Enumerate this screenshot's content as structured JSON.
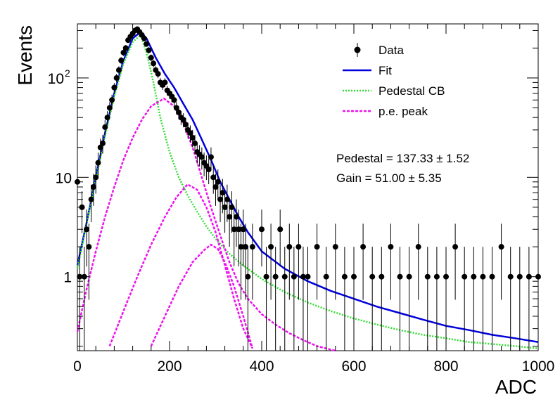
{
  "chart_data": {
    "type": "scatter",
    "title": "",
    "xlabel": "ADC",
    "ylabel": "Events",
    "xlim": [
      0,
      1000
    ],
    "ylim": [
      0.18,
      350
    ],
    "yscale": "log",
    "grid": false,
    "legend_position": "top-right",
    "x_ticks": [
      {
        "value": 0,
        "label": "0"
      },
      {
        "value": 200,
        "label": "200"
      },
      {
        "value": 400,
        "label": "400"
      },
      {
        "value": 600,
        "label": "600"
      },
      {
        "value": 800,
        "label": "800"
      },
      {
        "value": 1000,
        "label": "1000"
      }
    ],
    "y_ticks": [
      {
        "value": 1,
        "label": "1"
      },
      {
        "value": 10,
        "label": "10"
      },
      {
        "value": 100,
        "label": "10",
        "sup": "2"
      }
    ],
    "legend": [
      {
        "label": "Data",
        "style": "marker",
        "color": "#000000"
      },
      {
        "label": "Fit",
        "style": "solid",
        "color": "#0000dd"
      },
      {
        "label": "Pedestal CB",
        "style": "dotted",
        "color": "#33dd33"
      },
      {
        "label": "p.e. peak",
        "style": "dashed",
        "color": "#ee11ee"
      }
    ],
    "annotations": [
      {
        "text": "Pedestal = 137.33 ± 1.52"
      },
      {
        "text": "Gain = 51.00 ± 5.35"
      }
    ],
    "series": [
      {
        "name": "Data",
        "style": "points",
        "color": "#000000",
        "x": [
          0,
          5,
          10,
          15,
          20,
          25,
          30,
          35,
          40,
          45,
          50,
          55,
          60,
          65,
          70,
          75,
          80,
          85,
          90,
          95,
          100,
          105,
          110,
          115,
          120,
          125,
          130,
          135,
          140,
          145,
          150,
          155,
          160,
          165,
          170,
          175,
          180,
          185,
          190,
          195,
          200,
          205,
          210,
          215,
          220,
          225,
          230,
          235,
          240,
          245,
          250,
          255,
          260,
          265,
          270,
          275,
          280,
          285,
          290,
          295,
          300,
          305,
          310,
          315,
          320,
          325,
          330,
          335,
          340,
          345,
          350,
          355,
          360,
          365,
          370,
          380,
          400,
          410,
          420,
          430,
          440,
          450,
          460,
          470,
          480,
          490,
          500,
          520,
          540,
          560,
          580,
          600,
          620,
          640,
          660,
          680,
          700,
          720,
          740,
          760,
          780,
          800,
          820,
          840,
          860,
          880,
          900,
          920,
          940,
          960,
          980,
          1000
        ],
        "y": [
          9,
          1,
          5,
          1,
          3,
          2,
          6,
          8,
          10,
          14,
          20,
          22,
          32,
          40,
          50,
          60,
          80,
          100,
          120,
          150,
          180,
          200,
          240,
          260,
          280,
          300,
          310,
          290,
          270,
          250,
          220,
          190,
          160,
          140,
          120,
          110,
          90,
          85,
          90,
          75,
          70,
          65,
          60,
          50,
          45,
          40,
          38,
          34,
          30,
          28,
          25,
          22,
          18,
          17,
          16,
          14,
          13,
          12,
          16,
          10,
          8,
          9,
          6,
          7,
          5,
          6,
          4,
          5,
          3,
          4,
          3,
          2,
          3,
          2,
          1,
          2,
          3,
          1,
          2,
          1,
          3,
          1,
          2,
          1,
          2,
          1,
          1,
          2,
          1,
          2,
          1,
          1,
          2,
          1,
          1,
          2,
          1,
          1,
          2,
          1,
          1,
          1,
          2,
          1,
          1,
          1,
          1,
          2,
          1,
          1,
          1,
          1
        ]
      },
      {
        "name": "Fit",
        "style": "line",
        "color": "#0000dd",
        "x": [
          0,
          20,
          40,
          60,
          80,
          100,
          120,
          137,
          150,
          170,
          190,
          210,
          230,
          250,
          270,
          290,
          310,
          330,
          350,
          370,
          400,
          450,
          500,
          550,
          600,
          650,
          700,
          750,
          800,
          850,
          900,
          950,
          1000
        ],
        "y": [
          1.3,
          3.5,
          10,
          28,
          70,
          150,
          250,
          290,
          250,
          160,
          110,
          80,
          55,
          38,
          24,
          15,
          9,
          6,
          4,
          2.8,
          1.8,
          1.2,
          0.9,
          0.72,
          0.6,
          0.5,
          0.43,
          0.37,
          0.32,
          0.29,
          0.26,
          0.24,
          0.22
        ]
      },
      {
        "name": "Pedestal CB",
        "style": "line",
        "color": "#33dd33",
        "x": [
          0,
          20,
          40,
          60,
          80,
          100,
          120,
          137,
          150,
          165,
          180,
          200,
          220,
          240,
          260,
          280,
          300,
          330,
          360,
          400,
          450,
          500,
          550,
          600,
          650,
          700,
          750,
          800,
          850,
          900,
          950,
          1000
        ],
        "y": [
          1.2,
          3.4,
          9.5,
          26,
          65,
          140,
          230,
          270,
          180,
          90,
          40,
          18,
          10,
          6.5,
          4.5,
          3.2,
          2.4,
          1.7,
          1.3,
          0.95,
          0.7,
          0.55,
          0.45,
          0.38,
          0.33,
          0.29,
          0.26,
          0.24,
          0.22,
          0.21,
          0.2,
          0.19
        ]
      },
      {
        "name": "p.e. peak",
        "style": "line",
        "color": "#ee11ee",
        "x": [
          0,
          20,
          40,
          60,
          80,
          100,
          120,
          140,
          160,
          188,
          210,
          230,
          250,
          270,
          290,
          310,
          330,
          350,
          370,
          400,
          430,
          460,
          490,
          520,
          560
        ],
        "y": [
          0.28,
          0.75,
          1.8,
          4,
          8,
          15,
          25,
          38,
          52,
          62,
          52,
          35,
          20,
          10,
          5,
          2.6,
          1.4,
          0.85,
          0.6,
          0.42,
          0.33,
          0.27,
          0.23,
          0.2,
          0.18
        ]
      },
      {
        "name": "p.e. peak",
        "style": "line",
        "color": "#ee11ee",
        "x": [
          70,
          100,
          130,
          160,
          190,
          215,
          239,
          260,
          280,
          300,
          320,
          340,
          360,
          380
        ],
        "y": [
          0.2,
          0.45,
          1,
          2.1,
          4,
          6.3,
          8.5,
          7.5,
          5,
          2.8,
          1.3,
          0.6,
          0.3,
          0.19
        ]
      },
      {
        "name": "p.e. peak",
        "style": "line",
        "color": "#ee11ee",
        "x": [
          160,
          190,
          220,
          250,
          275,
          290,
          305,
          320,
          340,
          360,
          380
        ],
        "y": [
          0.2,
          0.4,
          0.8,
          1.4,
          1.85,
          2.1,
          1.9,
          1.4,
          0.8,
          0.4,
          0.19
        ]
      }
    ]
  }
}
